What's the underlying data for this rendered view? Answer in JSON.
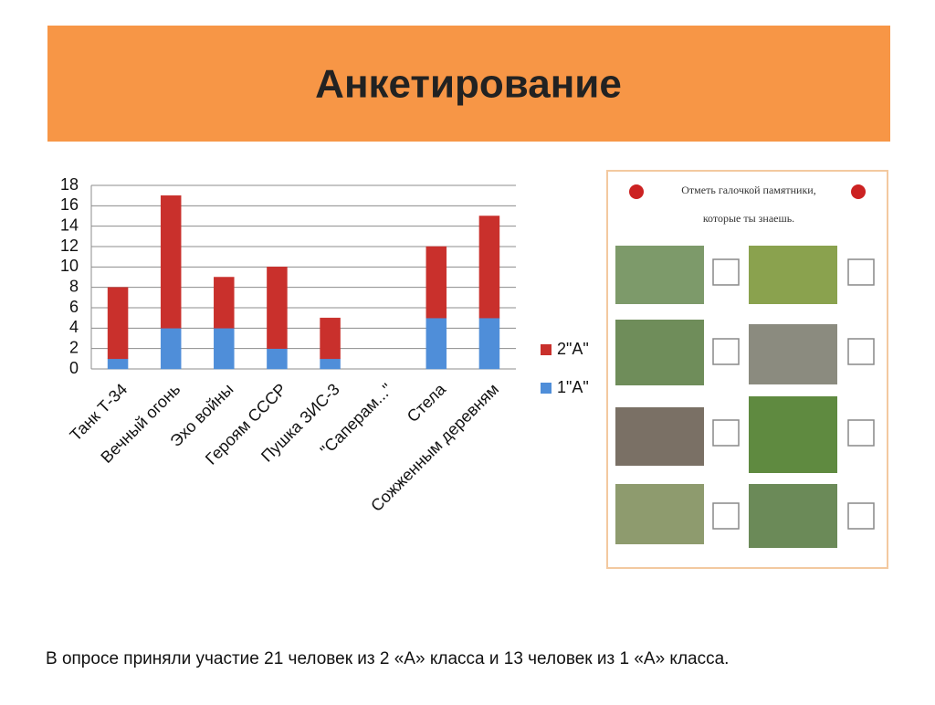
{
  "title": "Анкетирование",
  "chart_data": {
    "type": "stacked-bar",
    "categories": [
      "Танк Т-34",
      "Вечный огонь",
      "Эхо войны",
      "Героям СССР",
      "Пушка ЗИС-3",
      "\"Саперам...\"",
      "Стела",
      "Сожженным деревням"
    ],
    "series": [
      {
        "name": "1\"А\"",
        "color": "#4f8ed9",
        "values": [
          1,
          4,
          4,
          2,
          1,
          0,
          5,
          5
        ]
      },
      {
        "name": "2\"А\"",
        "color": "#c9302c",
        "values": [
          7,
          13,
          5,
          8,
          4,
          0,
          7,
          10
        ]
      }
    ],
    "ylim": [
      0,
      18
    ],
    "yticks": [
      0,
      2,
      4,
      6,
      8,
      10,
      12,
      14,
      16,
      18
    ],
    "grid": true,
    "legend": "right"
  },
  "questionnaire": {
    "line1": "Отметь галочкой памятники,",
    "line2": "которые ты знаешь."
  },
  "footnote": "В опросе приняли участие 21 человек из 2 «А» класса и 13 человек из 1 «А» класса."
}
